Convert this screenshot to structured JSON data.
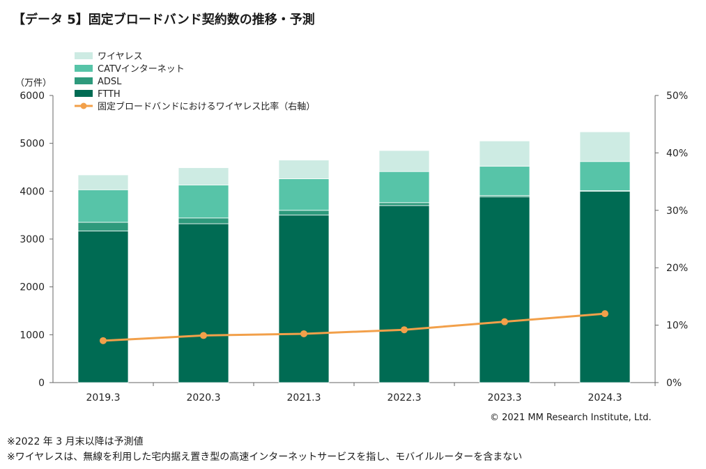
{
  "title": "【データ 5】固定ブロードバンド契約数の推移・予測",
  "unit_label": "（万件）",
  "copyright": "© 2021 MM Research Institute, Ltd.",
  "notes": [
    "※2022 年 3 月末以降は予測値",
    "※ワイヤレスは、無線を利用した宅内据え置き型の高速インターネットサービスを指し、モバイルルーターを含まない"
  ],
  "chart_data": {
    "type": "bar",
    "stacked": true,
    "categories": [
      "2019.3",
      "2020.3",
      "2021.3",
      "2022.3",
      "2023.3",
      "2024.3"
    ],
    "series": [
      {
        "name": "FTTH",
        "color": "#006b53",
        "values": [
          3170,
          3320,
          3500,
          3700,
          3880,
          4000
        ]
      },
      {
        "name": "ADSL",
        "color": "#2e9a7c",
        "values": [
          180,
          120,
          100,
          60,
          30,
          10
        ]
      },
      {
        "name": "CATVインターネット",
        "color": "#57c4a8",
        "values": [
          680,
          690,
          660,
          650,
          610,
          610
        ]
      },
      {
        "name": "ワイヤレス",
        "color": "#cdebe3",
        "values": [
          310,
          360,
          390,
          440,
          530,
          620
        ]
      }
    ],
    "line_series": {
      "name": "固定ブロードバンドにおけるワイヤレス比率（右軸）",
      "color": "#f2a04a",
      "values": [
        7.3,
        8.2,
        8.5,
        9.2,
        10.6,
        12.0
      ]
    },
    "legend_order": [
      "ワイヤレス",
      "CATVインターネット",
      "ADSL",
      "FTTH",
      "固定ブロードバンドにおけるワイヤレス比率（右軸）"
    ],
    "y_left": {
      "min": 0,
      "max": 6000,
      "ticks": [
        "0",
        "1000",
        "2000",
        "3000",
        "4000",
        "5000",
        "6000"
      ]
    },
    "y_right": {
      "min": 0,
      "max": 50,
      "ticks": [
        "0%",
        "10%",
        "20%",
        "30%",
        "40%",
        "50%"
      ]
    }
  }
}
